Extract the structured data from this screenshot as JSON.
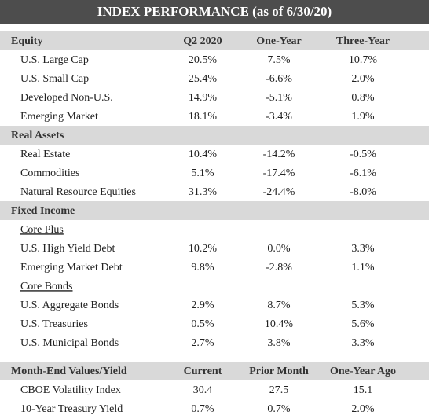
{
  "title": "INDEX PERFORMANCE (as of 6/30/20)",
  "sections": [
    {
      "header": [
        "Equity",
        "Q2 2020",
        "One-Year",
        "Three-Year"
      ],
      "rows": [
        {
          "label": "U.S. Large Cap",
          "values": [
            "20.5%",
            "7.5%",
            "10.7%"
          ]
        },
        {
          "label": "U.S. Small Cap",
          "values": [
            "25.4%",
            "-6.6%",
            "2.0%"
          ]
        },
        {
          "label": "Developed Non-U.S.",
          "values": [
            "14.9%",
            "-5.1%",
            "0.8%"
          ]
        },
        {
          "label": "Emerging Market",
          "values": [
            "18.1%",
            "-3.4%",
            "1.9%"
          ]
        }
      ]
    },
    {
      "header": [
        "Real Assets"
      ],
      "rows": [
        {
          "label": "Real Estate",
          "values": [
            "10.4%",
            "-14.2%",
            "-0.5%"
          ]
        },
        {
          "label": "Commodities",
          "values": [
            "5.1%",
            "-17.4%",
            "-6.1%"
          ]
        },
        {
          "label": "Natural Resource Equities",
          "values": [
            "31.3%",
            "-24.4%",
            "-8.0%"
          ]
        }
      ]
    },
    {
      "header": [
        "Fixed Income"
      ],
      "rows": [
        {
          "subheading": "Core Plus"
        },
        {
          "label": "U.S. High Yield Debt",
          "values": [
            "10.2%",
            "0.0%",
            "3.3%"
          ]
        },
        {
          "label": "Emerging Market Debt",
          "values": [
            "9.8%",
            "-2.8%",
            "1.1%"
          ]
        },
        {
          "subheading": "Core Bonds"
        },
        {
          "label": "U.S. Aggregate Bonds",
          "values": [
            "2.9%",
            "8.7%",
            "5.3%"
          ]
        },
        {
          "label": "U.S. Treasuries",
          "values": [
            "0.5%",
            "10.4%",
            "5.6%"
          ]
        },
        {
          "label": "U.S. Municipal Bonds",
          "values": [
            "2.7%",
            "3.8%",
            "3.3%"
          ]
        }
      ]
    },
    {
      "header": [
        "Month-End Values/Yield",
        "Current",
        "Prior Month",
        "One-Year Ago"
      ],
      "rows": [
        {
          "label": "CBOE Volatility Index",
          "values": [
            "30.4",
            "27.5",
            "15.1"
          ]
        },
        {
          "label": "10-Year Treasury Yield",
          "values": [
            "0.7%",
            "0.7%",
            "2.0%"
          ]
        }
      ]
    }
  ]
}
